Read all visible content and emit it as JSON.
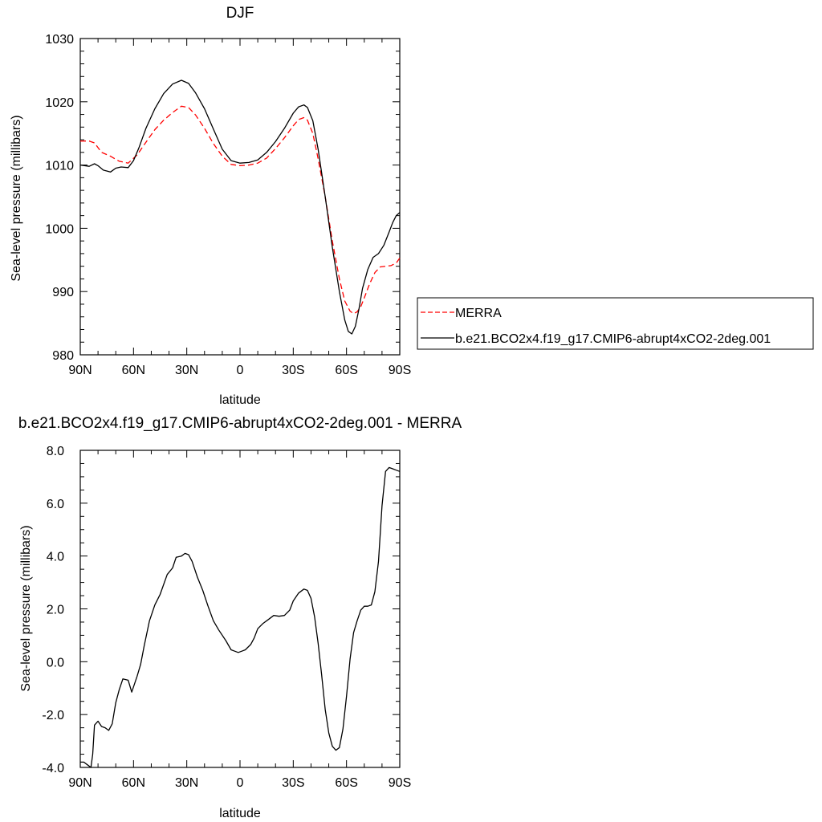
{
  "chart_data": [
    {
      "type": "line",
      "title": "DJF",
      "xlabel": "latitude",
      "ylabel": "Sea-level pressure (millibars)",
      "xlim": [
        90,
        -90
      ],
      "ylim": [
        980,
        1030
      ],
      "x_ticks": [
        {
          "value": 90,
          "label": "90N"
        },
        {
          "value": 60,
          "label": "60N"
        },
        {
          "value": 30,
          "label": "30N"
        },
        {
          "value": 0,
          "label": "0"
        },
        {
          "value": -30,
          "label": "30S"
        },
        {
          "value": -60,
          "label": "60S"
        },
        {
          "value": -90,
          "label": "90S"
        }
      ],
      "y_ticks": [
        {
          "value": 980,
          "label": "980"
        },
        {
          "value": 990,
          "label": "990"
        },
        {
          "value": 1000,
          "label": "1000"
        },
        {
          "value": 1010,
          "label": "1010"
        },
        {
          "value": 1020,
          "label": "1020"
        },
        {
          "value": 1030,
          "label": "1030"
        }
      ],
      "legend": {
        "placement": "right",
        "entries": [
          "MERRA",
          "b.e21.BCO2x4.f19_g17.CMIP6-abrupt4xCO2-2deg.001"
        ]
      },
      "series": [
        {
          "name": "MERRA",
          "color": "#ff0000",
          "dash": "dashed",
          "x": [
            90,
            85,
            82,
            78,
            73,
            68,
            63,
            58,
            53,
            48,
            43,
            38,
            33,
            29,
            25,
            20,
            15,
            10,
            5,
            0,
            -5,
            -10,
            -15,
            -20,
            -25,
            -30,
            -33,
            -36,
            -38,
            -41,
            -44,
            -48,
            -52,
            -56,
            -59,
            -62,
            -64,
            -66,
            -68,
            -70,
            -73,
            -76,
            -79,
            -82,
            -85,
            -88,
            -90
          ],
          "y": [
            1013.8,
            1013.8,
            1013.5,
            1012.0,
            1011.4,
            1010.6,
            1010.3,
            1011.6,
            1013.6,
            1015.6,
            1017.1,
            1018.3,
            1019.3,
            1019.1,
            1017.9,
            1015.8,
            1013.4,
            1011.4,
            1010.1,
            1009.9,
            1010.0,
            1010.3,
            1011.1,
            1012.6,
            1014.3,
            1016.2,
            1017.2,
            1017.5,
            1017.1,
            1015.0,
            1011.0,
            1005.0,
            998.0,
            992.0,
            988.5,
            986.9,
            986.5,
            986.8,
            987.6,
            989.0,
            991.2,
            993.0,
            993.9,
            994.0,
            994.1,
            994.5,
            995.3
          ]
        },
        {
          "name": "b.e21.BCO2x4.f19_g17.CMIP6-abrupt4xCO2-2deg.001",
          "color": "#000000",
          "dash": "solid",
          "x": [
            90,
            85,
            82,
            80,
            77,
            73,
            70,
            67,
            63,
            60,
            57,
            53,
            48,
            43,
            38,
            33,
            29,
            25,
            20,
            15,
            10,
            5,
            0,
            -5,
            -10,
            -15,
            -20,
            -25,
            -30,
            -33,
            -36,
            -38,
            -41,
            -44,
            -48,
            -52,
            -56,
            -59,
            -61,
            -63,
            -65,
            -67,
            -69,
            -72,
            -75,
            -78,
            -81,
            -84,
            -86,
            -88,
            -90
          ],
          "y": [
            1010.0,
            1009.8,
            1010.2,
            1009.9,
            1009.2,
            1008.9,
            1009.5,
            1009.7,
            1009.6,
            1010.7,
            1012.7,
            1015.8,
            1018.9,
            1021.3,
            1022.8,
            1023.4,
            1022.9,
            1021.4,
            1018.9,
            1015.7,
            1012.5,
            1010.7,
            1010.3,
            1010.4,
            1010.8,
            1012.0,
            1013.7,
            1015.8,
            1018.2,
            1019.2,
            1019.5,
            1019.1,
            1017.0,
            1012.5,
            1005.0,
            997.0,
            990.0,
            985.5,
            983.7,
            983.3,
            984.5,
            987.2,
            990.5,
            993.5,
            995.4,
            996.0,
            997.3,
            999.4,
            1000.9,
            1002.0,
            1002.5
          ]
        }
      ]
    },
    {
      "type": "line",
      "title": "b.e21.BCO2x4.f19_g17.CMIP6-abrupt4xCO2-2deg.001 - MERRA",
      "xlabel": "latitude",
      "ylabel": "Sea-level pressure (millibars)",
      "xlim": [
        90,
        -90
      ],
      "ylim": [
        -4.0,
        8.0
      ],
      "x_ticks": [
        {
          "value": 90,
          "label": "90N"
        },
        {
          "value": 60,
          "label": "60N"
        },
        {
          "value": 30,
          "label": "30N"
        },
        {
          "value": 0,
          "label": "0"
        },
        {
          "value": -30,
          "label": "30S"
        },
        {
          "value": -60,
          "label": "60S"
        },
        {
          "value": -90,
          "label": "90S"
        }
      ],
      "y_ticks": [
        {
          "value": -4.0,
          "label": "-4.0"
        },
        {
          "value": -2.0,
          "label": "-2.0"
        },
        {
          "value": 0.0,
          "label": "0.0"
        },
        {
          "value": 2.0,
          "label": "2.0"
        },
        {
          "value": 4.0,
          "label": "4.0"
        },
        {
          "value": 6.0,
          "label": "6.0"
        },
        {
          "value": 8.0,
          "label": "8.0"
        }
      ],
      "series": [
        {
          "color": "#000000",
          "dash": "solid",
          "x": [
            90,
            88,
            86,
            84,
            83,
            82,
            80,
            78,
            76,
            74,
            72,
            70,
            68,
            66,
            63,
            61,
            58,
            56,
            54,
            51,
            48,
            45,
            41,
            38,
            36,
            33,
            31,
            29,
            27,
            24,
            21,
            18,
            15,
            12,
            8,
            5,
            3,
            1,
            -1,
            -3,
            -6,
            -8,
            -10,
            -13,
            -16,
            -19,
            -22,
            -25,
            -28,
            -30,
            -33,
            -36,
            -38,
            -40,
            -42,
            -44,
            -46,
            -48,
            -50,
            -52,
            -54,
            -56,
            -58,
            -60,
            -62,
            -64,
            -66,
            -68,
            -70,
            -72,
            -74,
            -76,
            -78,
            -80,
            -82,
            -84,
            -86,
            -88,
            -90
          ],
          "y": [
            -3.8,
            -3.8,
            -3.9,
            -4.0,
            -3.5,
            -2.4,
            -2.25,
            -2.45,
            -2.5,
            -2.6,
            -2.35,
            -1.55,
            -1.05,
            -0.65,
            -0.7,
            -1.15,
            -0.55,
            -0.1,
            0.6,
            1.55,
            2.15,
            2.55,
            3.3,
            3.55,
            3.95,
            4.0,
            4.1,
            4.05,
            3.8,
            3.2,
            2.7,
            2.1,
            1.55,
            1.2,
            0.8,
            0.45,
            0.4,
            0.35,
            0.4,
            0.45,
            0.65,
            0.9,
            1.25,
            1.45,
            1.6,
            1.75,
            1.72,
            1.75,
            1.95,
            2.3,
            2.6,
            2.75,
            2.7,
            2.4,
            1.7,
            0.7,
            -0.5,
            -1.8,
            -2.7,
            -3.2,
            -3.35,
            -3.25,
            -2.55,
            -1.3,
            0.1,
            1.1,
            1.55,
            1.95,
            2.1,
            2.1,
            2.15,
            2.65,
            3.8,
            5.9,
            7.2,
            7.35,
            7.3,
            7.25,
            7.2
          ]
        }
      ]
    }
  ]
}
